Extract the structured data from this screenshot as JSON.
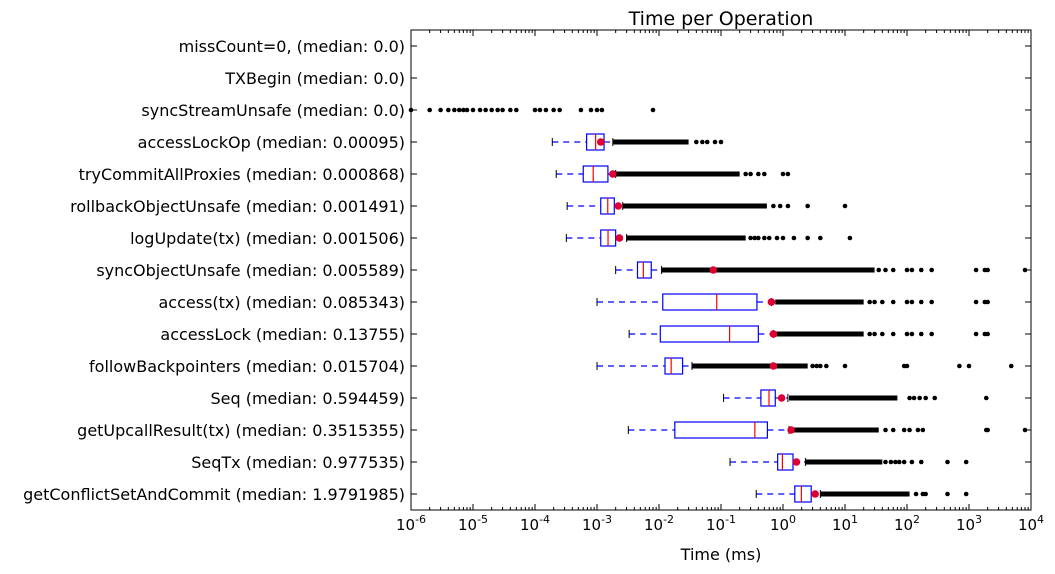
{
  "chart_data": {
    "type": "boxplot",
    "title": "Time per Operation",
    "xlabel": "Time (ms)",
    "ylabel": "",
    "x_scale": "log",
    "xlim": [
      1e-06,
      10000.0
    ],
    "x_ticks": [
      {
        "base": "10",
        "exp": "-6",
        "value": 1e-06
      },
      {
        "base": "10",
        "exp": "-5",
        "value": 1e-05
      },
      {
        "base": "10",
        "exp": "-4",
        "value": 0.0001
      },
      {
        "base": "10",
        "exp": "-3",
        "value": 0.001
      },
      {
        "base": "10",
        "exp": "-2",
        "value": 0.01
      },
      {
        "base": "10",
        "exp": "-1",
        "value": 0.1
      },
      {
        "base": "10",
        "exp": "0",
        "value": 1
      },
      {
        "base": "10",
        "exp": "1",
        "value": 10
      },
      {
        "base": "10",
        "exp": "2",
        "value": 100
      },
      {
        "base": "10",
        "exp": "3",
        "value": 1000
      },
      {
        "base": "10",
        "exp": "4",
        "value": 10000
      }
    ],
    "box_color": "#0000ff",
    "median_color": "#ff0000",
    "mean_color": "#dd0030",
    "flier_color": "#000000",
    "rows": [
      {
        "label": "missCount=0, (median: 0.0)",
        "empty": true
      },
      {
        "label": "TXBegin (median: 0.0)",
        "empty": true
      },
      {
        "label": "syncStreamUnsafe (median: 0.0)",
        "empty": true,
        "fliers": [
          1e-06,
          2e-06,
          3e-06,
          4e-06,
          5e-06,
          6e-06,
          7e-06,
          8e-06,
          1e-05,
          1.3e-05,
          1.6e-05,
          2e-05,
          2.5e-05,
          3e-05,
          4e-05,
          5e-05,
          0.0001,
          0.00012,
          0.00015,
          0.0002,
          0.00025,
          0.00055,
          0.0008,
          0.001,
          0.0012,
          0.008
        ]
      },
      {
        "label": "accessLockOp (median: 0.00095)",
        "whisker_low": 0.00019,
        "q1": 0.00068,
        "median": 0.00095,
        "q3": 0.0013,
        "whisker_high": 0.0018,
        "mean": 0.00115,
        "fliers_from": 0.0018,
        "fliers_to": 0.03,
        "fliers": [
          0.04,
          0.05,
          0.06,
          0.08,
          0.1
        ]
      },
      {
        "label": "tryCommitAllProxies (median: 0.000868)",
        "whisker_low": 0.00022,
        "q1": 0.0006,
        "median": 0.000868,
        "q3": 0.0015,
        "whisker_high": 0.002,
        "mean": 0.0018,
        "fliers_from": 0.002,
        "fliers_to": 0.2,
        "fliers": [
          0.25,
          0.3,
          0.4,
          0.5,
          1.0,
          1.2
        ]
      },
      {
        "label": "rollbackObjectUnsafe (median: 0.001491)",
        "whisker_low": 0.00033,
        "q1": 0.00115,
        "median": 0.001491,
        "q3": 0.0019,
        "whisker_high": 0.0026,
        "mean": 0.0022,
        "fliers_from": 0.0026,
        "fliers_to": 0.55,
        "fliers": [
          0.7,
          0.9,
          1.2,
          2.5,
          10
        ]
      },
      {
        "label": "logUpdate(tx) (median: 0.001506)",
        "whisker_low": 0.00032,
        "q1": 0.00115,
        "median": 0.001506,
        "q3": 0.002,
        "whisker_high": 0.003,
        "mean": 0.0023,
        "fliers_from": 0.003,
        "fliers_to": 0.25,
        "fliers": [
          0.3,
          0.35,
          0.4,
          0.5,
          0.6,
          0.8,
          1.0,
          1.5,
          2.5,
          4,
          12
        ]
      },
      {
        "label": "syncObjectUnsafe (median: 0.005589)",
        "whisker_low": 0.002,
        "q1": 0.0045,
        "median": 0.005589,
        "q3": 0.0075,
        "whisker_high": 0.011,
        "mean": 0.075,
        "fliers_from": 0.011,
        "fliers_to": 30,
        "fliers": [
          35,
          45,
          60,
          100,
          120,
          170,
          250,
          1300,
          1800,
          2000,
          8000
        ]
      },
      {
        "label": "access(tx) (median: 0.085343)",
        "whisker_low": 0.001,
        "q1": 0.0115,
        "median": 0.085343,
        "q3": 0.38,
        "whisker_high": 0.65,
        "mean": 0.65,
        "fliers_from": 0.75,
        "fliers_to": 20,
        "fliers": [
          25,
          30,
          40,
          60,
          100,
          120,
          170,
          250,
          1300,
          1800,
          2000
        ]
      },
      {
        "label": "accessLock (median: 0.13755)",
        "whisker_low": 0.0033,
        "q1": 0.0105,
        "median": 0.13755,
        "q3": 0.4,
        "whisker_high": 0.7,
        "mean": 0.7,
        "fliers_from": 0.78,
        "fliers_to": 20,
        "fliers": [
          25,
          30,
          40,
          60,
          100,
          120,
          170,
          250,
          1300,
          1800,
          2000
        ]
      },
      {
        "label": "followBackpointers (median: 0.015704)",
        "whisker_low": 0.001,
        "q1": 0.0125,
        "median": 0.015704,
        "q3": 0.024,
        "whisker_high": 0.034,
        "mean": 0.7,
        "fliers_from": 0.034,
        "fliers_to": 2.5,
        "fliers": [
          3,
          3.5,
          4,
          5,
          10,
          90,
          100,
          700,
          1000,
          4800
        ]
      },
      {
        "label": "Seq (median: 0.594459)",
        "whisker_low": 0.11,
        "q1": 0.44,
        "median": 0.594459,
        "q3": 0.75,
        "whisker_high": 1.2,
        "mean": 0.95,
        "fliers_from": 1.25,
        "fliers_to": 70,
        "fliers": [
          110,
          130,
          160,
          200,
          280,
          1900
        ]
      },
      {
        "label": "getUpcallResult(tx) (median: 0.3515355)",
        "whisker_low": 0.0032,
        "q1": 0.018,
        "median": 0.3515355,
        "q3": 0.56,
        "whisker_high": 1.25,
        "mean": 1.35,
        "fliers_from": 1.4,
        "fliers_to": 35,
        "fliers": [
          45,
          60,
          90,
          110,
          150,
          180,
          1900,
          2000,
          8000
        ]
      },
      {
        "label": "SeqTx (median: 0.977535)",
        "whisker_low": 0.14,
        "q1": 0.82,
        "median": 0.977535,
        "q3": 1.45,
        "whisker_high": 2.3,
        "mean": 1.65,
        "fliers_from": 2.3,
        "fliers_to": 40,
        "fliers": [
          45,
          55,
          65,
          75,
          90,
          120,
          170,
          450,
          900
        ]
      },
      {
        "label": "getConflictSetAndCommit (median: 1.9791985)",
        "whisker_low": 0.37,
        "q1": 1.55,
        "median": 1.9791985,
        "q3": 2.85,
        "whisker_high": 4.0,
        "mean": 3.3,
        "fliers_from": 4.0,
        "fliers_to": 110,
        "fliers": [
          140,
          180,
          200,
          450,
          900
        ]
      }
    ]
  }
}
